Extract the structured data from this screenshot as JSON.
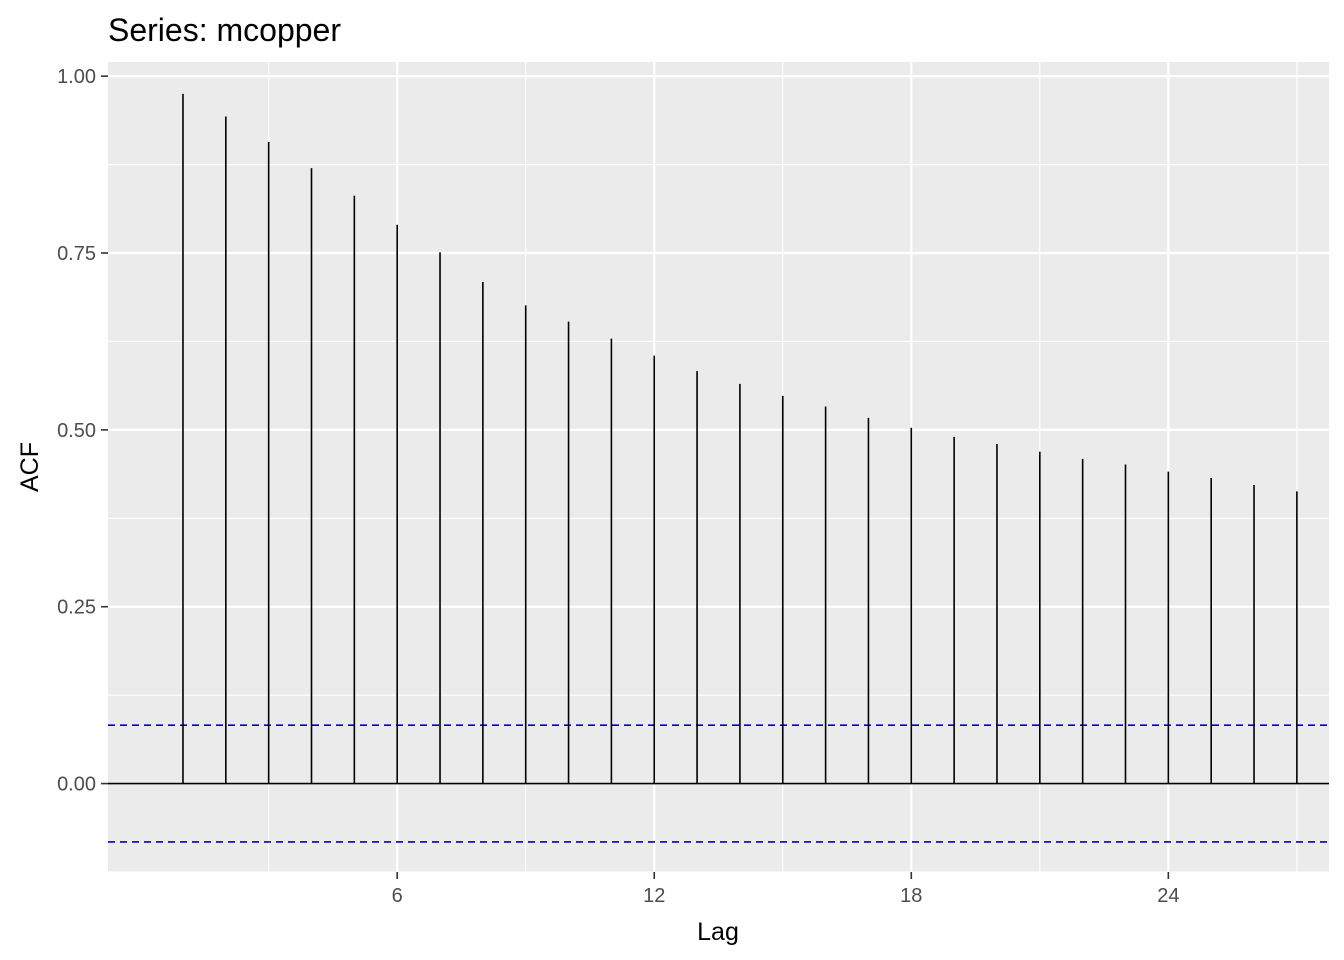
{
  "chart_data": {
    "type": "bar",
    "title": "Series: mcopper",
    "xlabel": "Lag",
    "ylabel": "ACF",
    "lags": [
      1,
      2,
      3,
      4,
      5,
      6,
      7,
      8,
      9,
      10,
      11,
      12,
      13,
      14,
      15,
      16,
      17,
      18,
      19,
      20,
      21,
      22,
      23,
      24,
      25,
      26,
      27
    ],
    "values": [
      0.975,
      0.943,
      0.907,
      0.87,
      0.831,
      0.79,
      0.751,
      0.709,
      0.676,
      0.653,
      0.629,
      0.605,
      0.583,
      0.565,
      0.548,
      0.533,
      0.517,
      0.503,
      0.49,
      0.48,
      0.469,
      0.459,
      0.451,
      0.441,
      0.432,
      0.422,
      0.413
    ],
    "confidence_bound": 0.0825,
    "xlim": [
      -0.75,
      27.75
    ],
    "ylim": [
      -0.125,
      1.02
    ],
    "x_ticks": [
      6,
      12,
      18,
      24
    ],
    "x_tick_labels": [
      "6",
      "12",
      "18",
      "24"
    ],
    "y_ticks": [
      0,
      0.25,
      0.5,
      0.75,
      1.0
    ],
    "y_tick_labels": [
      "0.00",
      "0.25",
      "0.50",
      "0.75",
      "1.00"
    ],
    "grid": true,
    "colors": {
      "panel_background": "#ebebeb",
      "grid": "#ffffff",
      "spikes": "#000000",
      "confidence_lines": "#0000cc",
      "tick_text": "#4d4d4d"
    }
  }
}
